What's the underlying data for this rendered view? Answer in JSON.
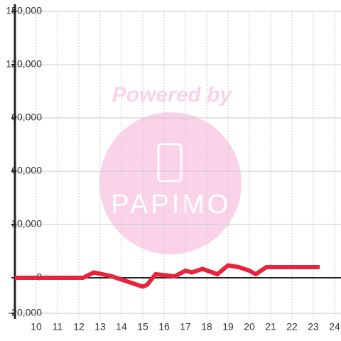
{
  "watermark": {
    "line1": "Powered by",
    "line2": "PAPIMO"
  },
  "chart_data": {
    "type": "line",
    "x": [
      9,
      12.2,
      12.7,
      13.5,
      14,
      14.5,
      15,
      15.2,
      15.6,
      16,
      16.5,
      17,
      17.3,
      17.8,
      18.5,
      19,
      19.5,
      20,
      20.3,
      20.8,
      21.5,
      23.3
    ],
    "series": [
      {
        "color": "#e8243c",
        "values": [
          0,
          0,
          3000,
          1000,
          -1000,
          -3000,
          -5000,
          -4000,
          2000,
          1500,
          800,
          4000,
          3000,
          5000,
          2000,
          7000,
          6000,
          4000,
          2000,
          6000,
          6000,
          6000
        ]
      }
    ],
    "xlim": [
      9,
      24.3
    ],
    "xticks": [
      10,
      11,
      12,
      13,
      14,
      15,
      16,
      17,
      18,
      19,
      20,
      21,
      22,
      23,
      24
    ],
    "ylim": [
      -20000,
      150000
    ],
    "yticks": [
      {
        "value": -20000,
        "label": "-20,000"
      },
      0,
      {
        "value": 30000,
        "label": "30,000"
      },
      {
        "value": 60000,
        "label": "60,000"
      },
      {
        "value": 90000,
        "label": "90,000"
      },
      {
        "value": 120000,
        "label": "120,000"
      },
      {
        "value": 150000,
        "label": "150,000"
      }
    ],
    "grid": true
  }
}
